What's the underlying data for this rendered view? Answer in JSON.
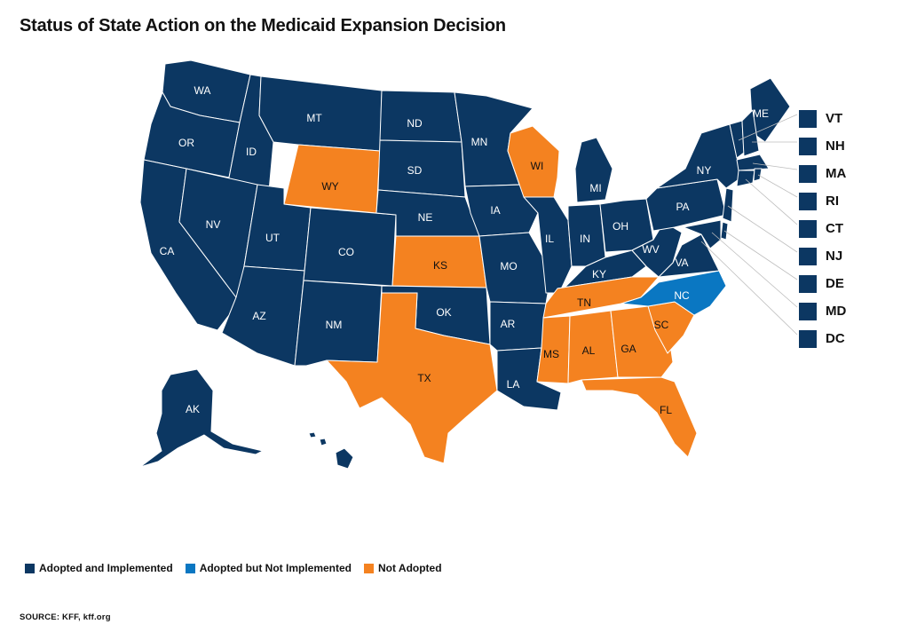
{
  "title": "Status of State Action on the Medicaid Expansion Decision",
  "colors": {
    "adopted_implemented": "#0c3762",
    "adopted_not_implemented": "#0a77c2",
    "not_adopted": "#f48220"
  },
  "legend": [
    {
      "key": "adopted_implemented",
      "label": "Adopted and Implemented"
    },
    {
      "key": "adopted_not_implemented",
      "label": "Adopted but Not Implemented"
    },
    {
      "key": "not_adopted",
      "label": "Not Adopted"
    }
  ],
  "source": "SOURCE: KFF, kff.org",
  "states": {
    "WA": "adopted_implemented",
    "OR": "adopted_implemented",
    "CA": "adopted_implemented",
    "ID": "adopted_implemented",
    "NV": "adopted_implemented",
    "MT": "adopted_implemented",
    "WY": "not_adopted",
    "UT": "adopted_implemented",
    "AZ": "adopted_implemented",
    "CO": "adopted_implemented",
    "NM": "adopted_implemented",
    "ND": "adopted_implemented",
    "SD": "adopted_implemented",
    "NE": "adopted_implemented",
    "KS": "not_adopted",
    "OK": "adopted_implemented",
    "TX": "not_adopted",
    "MN": "adopted_implemented",
    "IA": "adopted_implemented",
    "MO": "adopted_implemented",
    "AR": "adopted_implemented",
    "LA": "adopted_implemented",
    "WI": "not_adopted",
    "IL": "adopted_implemented",
    "MI": "adopted_implemented",
    "IN": "adopted_implemented",
    "OH": "adopted_implemented",
    "KY": "adopted_implemented",
    "TN": "not_adopted",
    "MS": "not_adopted",
    "AL": "not_adopted",
    "GA": "not_adopted",
    "FL": "not_adopted",
    "SC": "not_adopted",
    "NC": "adopted_not_implemented",
    "VA": "adopted_implemented",
    "WV": "adopted_implemented",
    "PA": "adopted_implemented",
    "NY": "adopted_implemented",
    "ME": "adopted_implemented",
    "AK": "adopted_implemented",
    "HI": "adopted_implemented",
    "VT": "adopted_implemented",
    "NH": "adopted_implemented",
    "MA": "adopted_implemented",
    "RI": "adopted_implemented",
    "CT": "adopted_implemented",
    "NJ": "adopted_implemented",
    "DE": "adopted_implemented",
    "MD": "adopted_implemented",
    "DC": "adopted_implemented"
  },
  "small_states": [
    "VT",
    "NH",
    "MA",
    "RI",
    "CT",
    "NJ",
    "DE",
    "MD",
    "DC"
  ]
}
